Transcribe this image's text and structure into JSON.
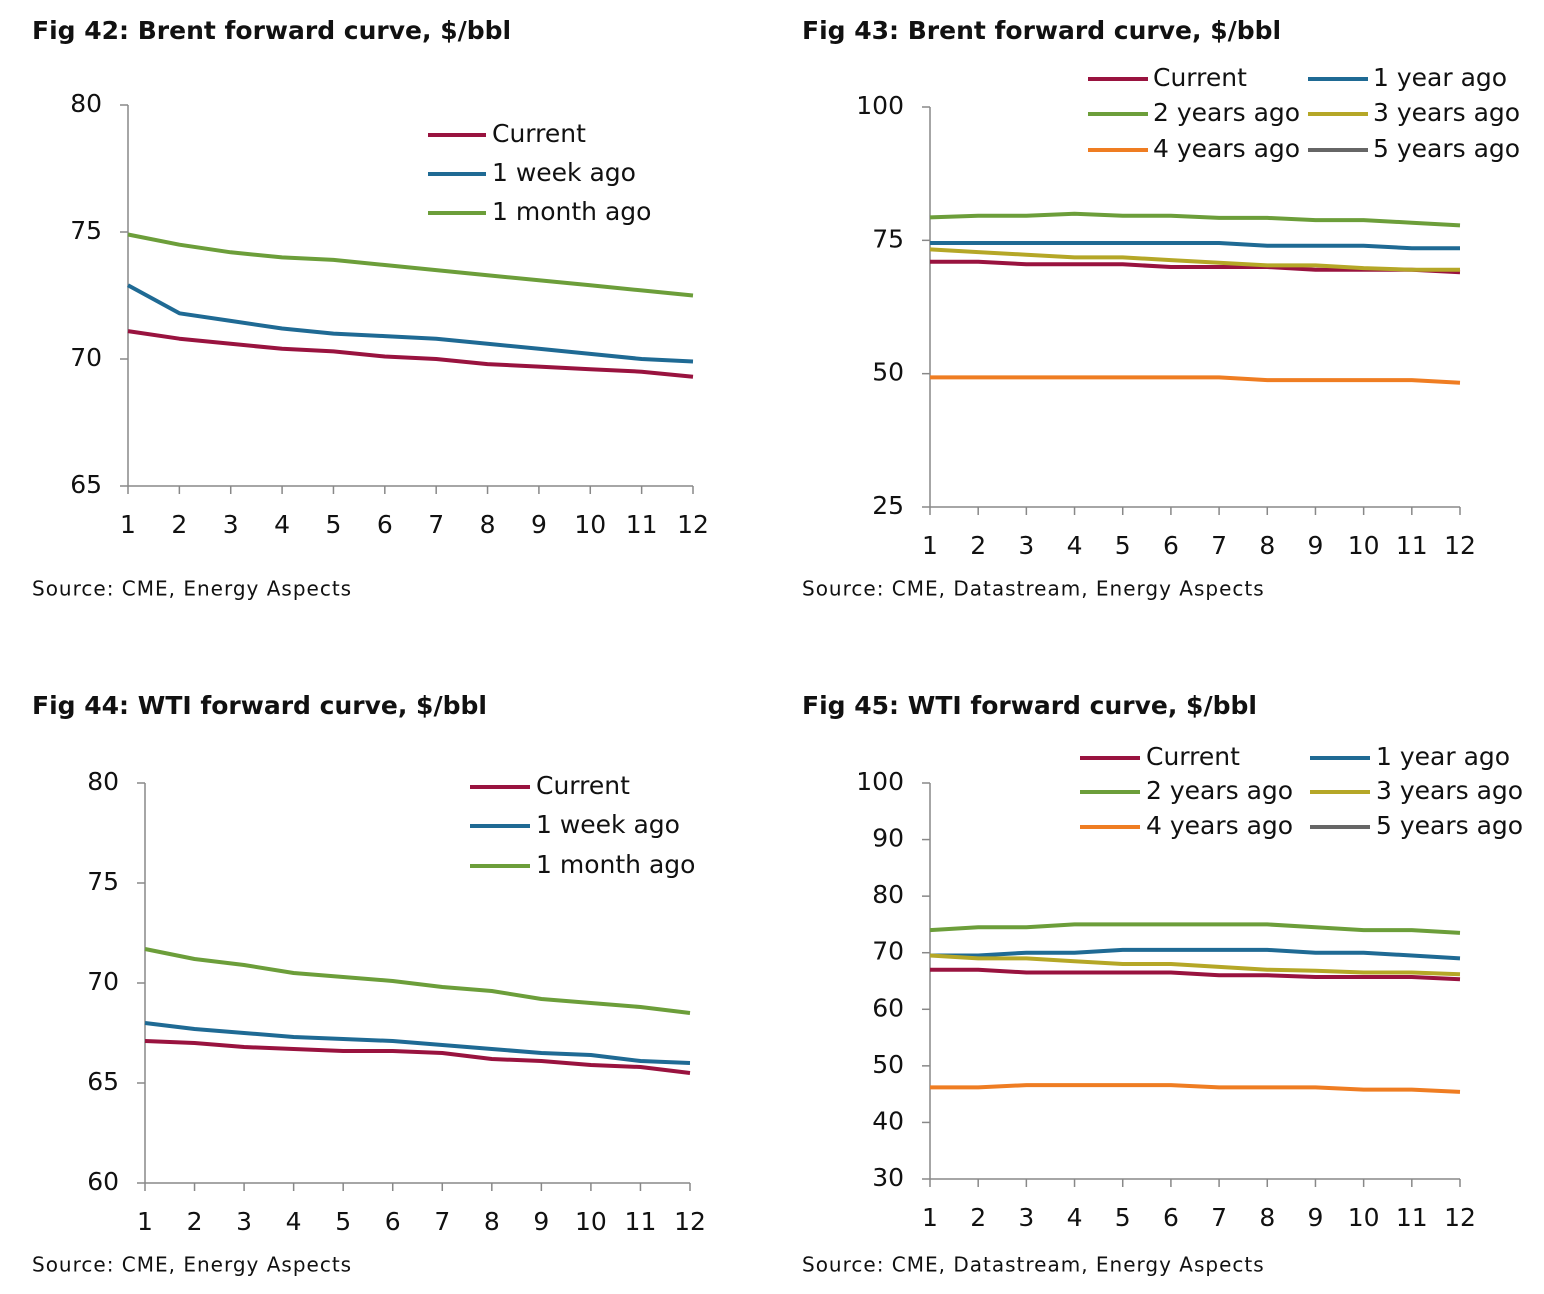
{
  "chart_data": [
    {
      "type": "line",
      "title": "Fig 42:  Brent forward curve, $/bbl",
      "source": "Source: CME, Energy Aspects",
      "categories": [
        1,
        2,
        3,
        4,
        5,
        6,
        7,
        8,
        9,
        10,
        11,
        12
      ],
      "ylim": [
        65,
        80
      ],
      "yticks": [
        65,
        70,
        75,
        80
      ],
      "series": [
        {
          "name": "Current",
          "color": "#99133f",
          "values": [
            71.1,
            70.8,
            70.6,
            70.4,
            70.3,
            70.1,
            70.0,
            69.8,
            69.7,
            69.6,
            69.5,
            69.3
          ]
        },
        {
          "name": "1 week ago",
          "color": "#1f6a94",
          "values": [
            72.9,
            71.8,
            71.5,
            71.2,
            71.0,
            70.9,
            70.8,
            70.6,
            70.4,
            70.2,
            70.0,
            69.9
          ]
        },
        {
          "name": "1 month ago",
          "color": "#6c9e3a",
          "values": [
            74.9,
            74.5,
            74.2,
            74.0,
            73.9,
            73.7,
            73.5,
            73.3,
            73.1,
            72.9,
            72.7,
            72.5
          ]
        }
      ]
    },
    {
      "type": "line",
      "title": "Fig 43:  Brent forward curve, $/bbl",
      "source": "Source: CME, Datastream, Energy Aspects",
      "categories": [
        1,
        2,
        3,
        4,
        5,
        6,
        7,
        8,
        9,
        10,
        11,
        12
      ],
      "ylim": [
        25,
        100
      ],
      "yticks": [
        25,
        50,
        75,
        100
      ],
      "series": [
        {
          "name": "Current",
          "color": "#99133f",
          "values": [
            71,
            71,
            70.5,
            70.5,
            70.5,
            70,
            70,
            70,
            69.5,
            69.5,
            69.5,
            69
          ]
        },
        {
          "name": "1 year ago",
          "color": "#1f6a94",
          "values": [
            74.5,
            74.5,
            74.5,
            74.5,
            74.5,
            74.5,
            74.5,
            74,
            74,
            74,
            73.5,
            73.5
          ]
        },
        {
          "name": "2 years ago",
          "color": "#6c9e3a",
          "values": [
            79.3,
            79.6,
            79.6,
            80,
            79.6,
            79.6,
            79.2,
            79.2,
            78.8,
            78.8,
            78.3,
            77.8
          ]
        },
        {
          "name": "3 years ago",
          "color": "#b5a727",
          "values": [
            73.3,
            72.8,
            72.3,
            71.8,
            71.8,
            71.3,
            70.8,
            70.3,
            70.3,
            69.8,
            69.5,
            69.5
          ]
        },
        {
          "name": "4 years ago",
          "color": "#ef7d22",
          "values": [
            49.3,
            49.3,
            49.3,
            49.3,
            49.3,
            49.3,
            49.3,
            48.8,
            48.8,
            48.8,
            48.8,
            48.3
          ]
        },
        {
          "name": "5 years ago",
          "color": "#666666",
          "values": [
            null,
            null,
            null,
            null,
            null,
            null,
            null,
            null,
            null,
            null,
            null,
            null
          ]
        }
      ]
    },
    {
      "type": "line",
      "title": "Fig 44:  WTI forward curve, $/bbl",
      "source": "Source: CME, Energy Aspects",
      "categories": [
        1,
        2,
        3,
        4,
        5,
        6,
        7,
        8,
        9,
        10,
        11,
        12
      ],
      "ylim": [
        60,
        80
      ],
      "yticks": [
        60,
        65,
        70,
        75,
        80
      ],
      "series": [
        {
          "name": "Current",
          "color": "#99133f",
          "values": [
            67.1,
            67.0,
            66.8,
            66.7,
            66.6,
            66.6,
            66.5,
            66.2,
            66.1,
            65.9,
            65.8,
            65.5
          ]
        },
        {
          "name": "1 week ago",
          "color": "#1f6a94",
          "values": [
            68.0,
            67.7,
            67.5,
            67.3,
            67.2,
            67.1,
            66.9,
            66.7,
            66.5,
            66.4,
            66.1,
            66.0
          ]
        },
        {
          "name": "1 month ago",
          "color": "#6c9e3a",
          "values": [
            71.7,
            71.2,
            70.9,
            70.5,
            70.3,
            70.1,
            69.8,
            69.6,
            69.2,
            69.0,
            68.8,
            68.5
          ]
        }
      ]
    },
    {
      "type": "line",
      "title": "Fig 45:  WTI forward curve, $/bbl",
      "source": "Source: CME, Datastream, Energy Aspects",
      "categories": [
        1,
        2,
        3,
        4,
        5,
        6,
        7,
        8,
        9,
        10,
        11,
        12
      ],
      "ylim": [
        30,
        100
      ],
      "yticks": [
        30,
        40,
        50,
        60,
        70,
        80,
        90,
        100
      ],
      "series": [
        {
          "name": "Current",
          "color": "#99133f",
          "values": [
            67,
            67,
            66.5,
            66.5,
            66.5,
            66.5,
            66,
            66,
            65.7,
            65.7,
            65.7,
            65.3
          ]
        },
        {
          "name": "1 year ago",
          "color": "#1f6a94",
          "values": [
            69.5,
            69.5,
            70,
            70,
            70.5,
            70.5,
            70.5,
            70.5,
            70,
            70,
            69.5,
            69
          ]
        },
        {
          "name": "2 years ago",
          "color": "#6c9e3a",
          "values": [
            74,
            74.5,
            74.5,
            75,
            75,
            75,
            75,
            75,
            74.5,
            74,
            74,
            73.5
          ]
        },
        {
          "name": "3 years ago",
          "color": "#b5a727",
          "values": [
            69.5,
            69,
            69,
            68.5,
            68,
            68,
            67.5,
            67,
            66.8,
            66.5,
            66.5,
            66.2
          ]
        },
        {
          "name": "4 years ago",
          "color": "#ef7d22",
          "values": [
            46.2,
            46.2,
            46.6,
            46.6,
            46.6,
            46.6,
            46.2,
            46.2,
            46.2,
            45.8,
            45.8,
            45.4
          ]
        },
        {
          "name": "5 years ago",
          "color": "#666666",
          "values": [
            null,
            null,
            null,
            null,
            null,
            null,
            null,
            null,
            null,
            null,
            null,
            null
          ]
        }
      ]
    }
  ]
}
